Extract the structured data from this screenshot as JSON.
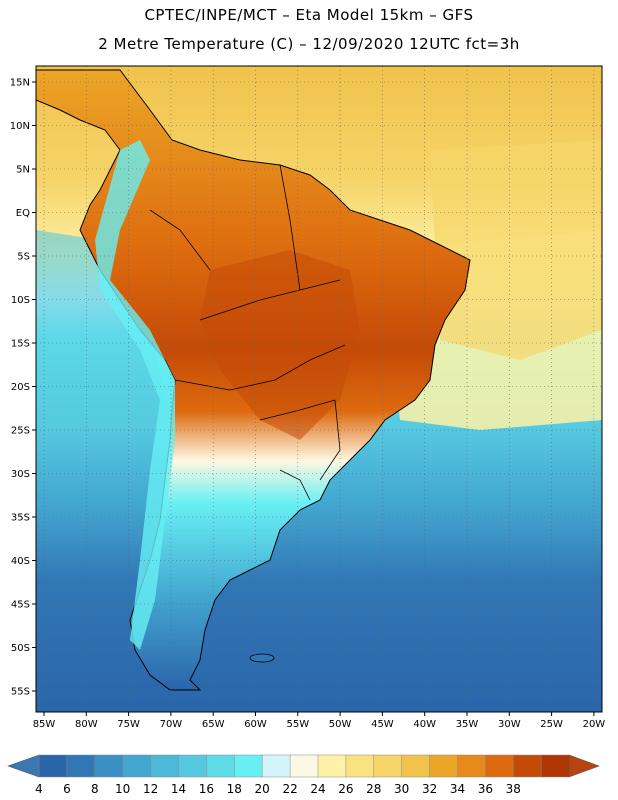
{
  "header": {
    "line1": "CPTEC/INPE/MCT –  Eta Model 15km – GFS",
    "line2": "2 Metre Temperature (C) – 12/09/2020 12UTC fct=3h"
  },
  "map": {
    "lat_ticks": [
      "15N",
      "10N",
      "5N",
      "EQ",
      "5S",
      "10S",
      "15S",
      "20S",
      "25S",
      "30S",
      "35S",
      "40S",
      "45S",
      "50S",
      "55S"
    ],
    "lon_ticks": [
      "85W",
      "80W",
      "75W",
      "70W",
      "65W",
      "60W",
      "55W",
      "50W",
      "45W",
      "40W",
      "35W",
      "30W",
      "25W",
      "20W"
    ]
  },
  "colorbar": {
    "labels": [
      "4",
      "6",
      "8",
      "10",
      "12",
      "14",
      "16",
      "18",
      "20",
      "22",
      "24",
      "26",
      "28",
      "30",
      "32",
      "34",
      "36",
      "38"
    ],
    "colors": [
      "#2a65aa",
      "#3177b6",
      "#3b8fc4",
      "#43a6d0",
      "#4db8d8",
      "#55c9e0",
      "#5fdbe8",
      "#67eff4",
      "#d2f4fa",
      "#fdf8e2",
      "#fdf2a6",
      "#fae281",
      "#f6d56a",
      "#f1c24c",
      "#eca627",
      "#e68a1e",
      "#dd6a0e",
      "#c44a08",
      "#b03505"
    ],
    "under_color": "#3a78b4",
    "over_color": "#b8430e"
  }
}
